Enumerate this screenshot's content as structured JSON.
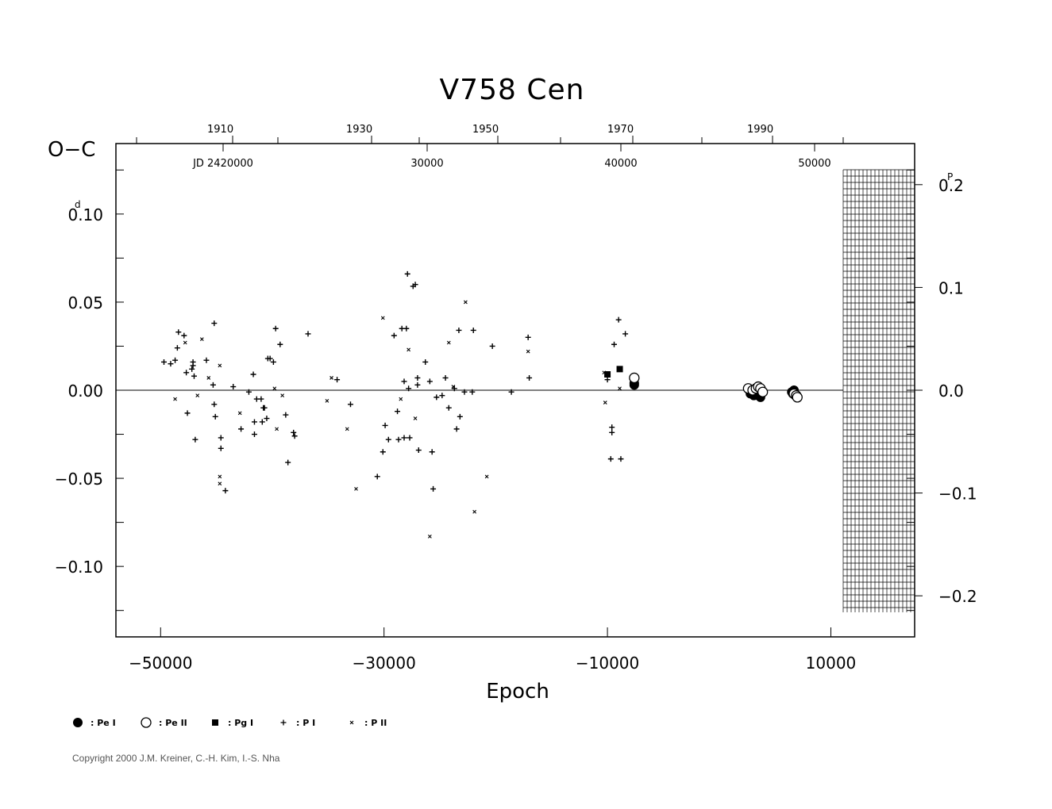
{
  "chart_data": {
    "type": "scatter",
    "title": "V758  Cen",
    "xlabel": "Epoch",
    "ylabel": "O−C",
    "ylabel_unit_superscript": "d",
    "right_unit_superscript": "P",
    "xlim": [
      -54000,
      17500
    ],
    "ylim": [
      -0.14,
      0.14
    ],
    "x_ticks": [
      "−50000",
      "−30000",
      "−10000",
      "10000"
    ],
    "x_tick_values": [
      -50000,
      -30000,
      -10000,
      10000
    ],
    "y_ticks": [
      "0.10",
      "0.05",
      "0.00",
      "−0.05",
      "−0.10"
    ],
    "y_tick_values": [
      0.1,
      0.05,
      0.0,
      -0.05,
      -0.1
    ],
    "right_ticks": [
      "0.2",
      "0.1",
      "0.0",
      "−0.1",
      "−0.2"
    ],
    "right_tick_values": [
      0.2,
      0.1,
      0.0,
      -0.1,
      -0.2
    ],
    "top_years": [
      "1910",
      "1930",
      "1950",
      "1970",
      "1990"
    ],
    "top_jd": [
      "JD 2420000",
      "30000",
      "40000",
      "50000"
    ],
    "grid": false,
    "zero_line": true,
    "legend_position": "bottom-left",
    "legend": [
      {
        "symbol": "filled-circle",
        "label": ": Pe I"
      },
      {
        "symbol": "open-circle",
        "label": ": Pe II"
      },
      {
        "symbol": "filled-square",
        "label": ": Pg I"
      },
      {
        "symbol": "plus",
        "label": ": P I"
      },
      {
        "symbol": "cross",
        "label": ": P II"
      }
    ],
    "series": [
      {
        "name": "Pe I",
        "marker": "filled-circle",
        "points": [
          [
            -7600,
            0.004
          ],
          [
            -7600,
            0.003
          ],
          [
            2800,
            -0.002
          ],
          [
            3100,
            -0.003
          ],
          [
            3400,
            -0.002
          ],
          [
            3500,
            -0.003
          ],
          [
            3700,
            -0.004
          ],
          [
            6500,
            -0.001
          ],
          [
            6600,
            -0.002
          ],
          [
            6700,
            0.0
          ],
          [
            6800,
            -0.003
          ]
        ]
      },
      {
        "name": "Pe II",
        "marker": "open-circle",
        "points": [
          [
            -7600,
            0.007
          ],
          [
            2600,
            0.001
          ],
          [
            3000,
            0.0
          ],
          [
            3300,
            0.001
          ],
          [
            3500,
            0.002
          ],
          [
            3700,
            0.001
          ],
          [
            3900,
            -0.001
          ],
          [
            6700,
            -0.002
          ],
          [
            6900,
            -0.003
          ],
          [
            7000,
            -0.004
          ]
        ]
      },
      {
        "name": "Pg I",
        "marker": "filled-square",
        "points": [
          [
            -10000,
            0.009
          ],
          [
            -8900,
            0.012
          ]
        ]
      },
      {
        "name": "P I",
        "marker": "plus",
        "points": [
          [
            -49700,
            0.016
          ],
          [
            -49100,
            0.015
          ],
          [
            -48700,
            0.017
          ],
          [
            -48500,
            0.024
          ],
          [
            -48400,
            0.033
          ],
          [
            -47900,
            0.031
          ],
          [
            -47700,
            0.01
          ],
          [
            -47600,
            -0.013
          ],
          [
            -47200,
            0.012
          ],
          [
            -47100,
            0.016
          ],
          [
            -47000,
            0.008
          ],
          [
            -46900,
            -0.028
          ],
          [
            -45900,
            0.017
          ],
          [
            -45200,
            0.038
          ],
          [
            -45300,
            0.003
          ],
          [
            -45200,
            -0.008
          ],
          [
            -45100,
            -0.015
          ],
          [
            -44600,
            -0.027
          ],
          [
            -44600,
            -0.033
          ],
          [
            -44200,
            -0.057
          ],
          [
            -43500,
            0.002
          ],
          [
            -42800,
            -0.022
          ],
          [
            -42100,
            -0.001
          ],
          [
            -41700,
            0.009
          ],
          [
            -41600,
            -0.018
          ],
          [
            -41600,
            -0.025
          ],
          [
            -41400,
            -0.005
          ],
          [
            -41000,
            -0.005
          ],
          [
            -40900,
            -0.018
          ],
          [
            -40800,
            -0.01
          ],
          [
            -40700,
            -0.01
          ],
          [
            -40500,
            -0.016
          ],
          [
            -40400,
            0.018
          ],
          [
            -40200,
            0.018
          ],
          [
            -39900,
            0.016
          ],
          [
            -39700,
            0.035
          ],
          [
            -39300,
            0.026
          ],
          [
            -38800,
            -0.014
          ],
          [
            -38600,
            -0.041
          ],
          [
            -38100,
            -0.024
          ],
          [
            -38000,
            -0.026
          ],
          [
            -36800,
            0.032
          ],
          [
            -34200,
            0.006
          ],
          [
            -33000,
            -0.008
          ],
          [
            -30600,
            -0.049
          ],
          [
            -30100,
            -0.035
          ],
          [
            -29900,
            -0.02
          ],
          [
            -29600,
            -0.028
          ],
          [
            -29100,
            0.031
          ],
          [
            -28800,
            -0.012
          ],
          [
            -28700,
            -0.028
          ],
          [
            -28400,
            0.035
          ],
          [
            -28200,
            -0.027
          ],
          [
            -28200,
            0.005
          ],
          [
            -28000,
            0.035
          ],
          [
            -27800,
            0.001
          ],
          [
            -27700,
            -0.027
          ],
          [
            -27400,
            0.059
          ],
          [
            -27200,
            0.06
          ],
          [
            -27000,
            0.007
          ],
          [
            -27000,
            0.003
          ],
          [
            -26900,
            -0.034
          ],
          [
            -26300,
            0.016
          ],
          [
            -25900,
            0.005
          ],
          [
            -25700,
            -0.035
          ],
          [
            -25600,
            -0.056
          ],
          [
            -25300,
            -0.004
          ],
          [
            -24800,
            -0.003
          ],
          [
            -24500,
            0.007
          ],
          [
            -24200,
            -0.01
          ],
          [
            -23700,
            0.001
          ],
          [
            -23500,
            -0.022
          ],
          [
            -23300,
            0.034
          ],
          [
            -23200,
            -0.015
          ],
          [
            -22800,
            -0.001
          ],
          [
            -22100,
            -0.001
          ],
          [
            -22000,
            0.034
          ],
          [
            -20300,
            0.025
          ],
          [
            -18600,
            -0.001
          ],
          [
            -17100,
            0.03
          ],
          [
            -17000,
            0.007
          ],
          [
            -10000,
            0.006
          ],
          [
            -9700,
            -0.039
          ],
          [
            -9600,
            -0.024
          ],
          [
            -9600,
            -0.021
          ],
          [
            -9400,
            0.026
          ],
          [
            -9000,
            0.04
          ],
          [
            -8800,
            -0.039
          ],
          [
            -8400,
            0.032
          ],
          [
            -27900,
            0.066
          ],
          [
            -47100,
            0.014
          ]
        ]
      },
      {
        "name": "P II",
        "marker": "cross",
        "points": [
          [
            -48700,
            -0.005
          ],
          [
            -47800,
            0.027
          ],
          [
            -46700,
            -0.003
          ],
          [
            -46300,
            0.029
          ],
          [
            -45700,
            0.007
          ],
          [
            -44700,
            0.014
          ],
          [
            -44700,
            -0.049
          ],
          [
            -44700,
            -0.053
          ],
          [
            -42900,
            -0.013
          ],
          [
            -39800,
            0.001
          ],
          [
            -39600,
            -0.022
          ],
          [
            -39100,
            -0.003
          ],
          [
            -35100,
            -0.006
          ],
          [
            -34700,
            0.007
          ],
          [
            -33300,
            -0.022
          ],
          [
            -32500,
            -0.056
          ],
          [
            -30100,
            0.041
          ],
          [
            -28500,
            -0.005
          ],
          [
            -27800,
            0.023
          ],
          [
            -27200,
            -0.016
          ],
          [
            -25900,
            -0.083
          ],
          [
            -24200,
            0.027
          ],
          [
            -23800,
            0.002
          ],
          [
            -22700,
            0.05
          ],
          [
            -21900,
            -0.069
          ],
          [
            -20800,
            -0.049
          ],
          [
            -17100,
            0.022
          ],
          [
            -10200,
            -0.007
          ],
          [
            -10300,
            0.01
          ],
          [
            -8900,
            0.001
          ]
        ]
      }
    ]
  },
  "footer": {
    "copyright": "Copyright 2000 J.M. Kreiner, C.-H. Kim, I.-S. Nha"
  }
}
